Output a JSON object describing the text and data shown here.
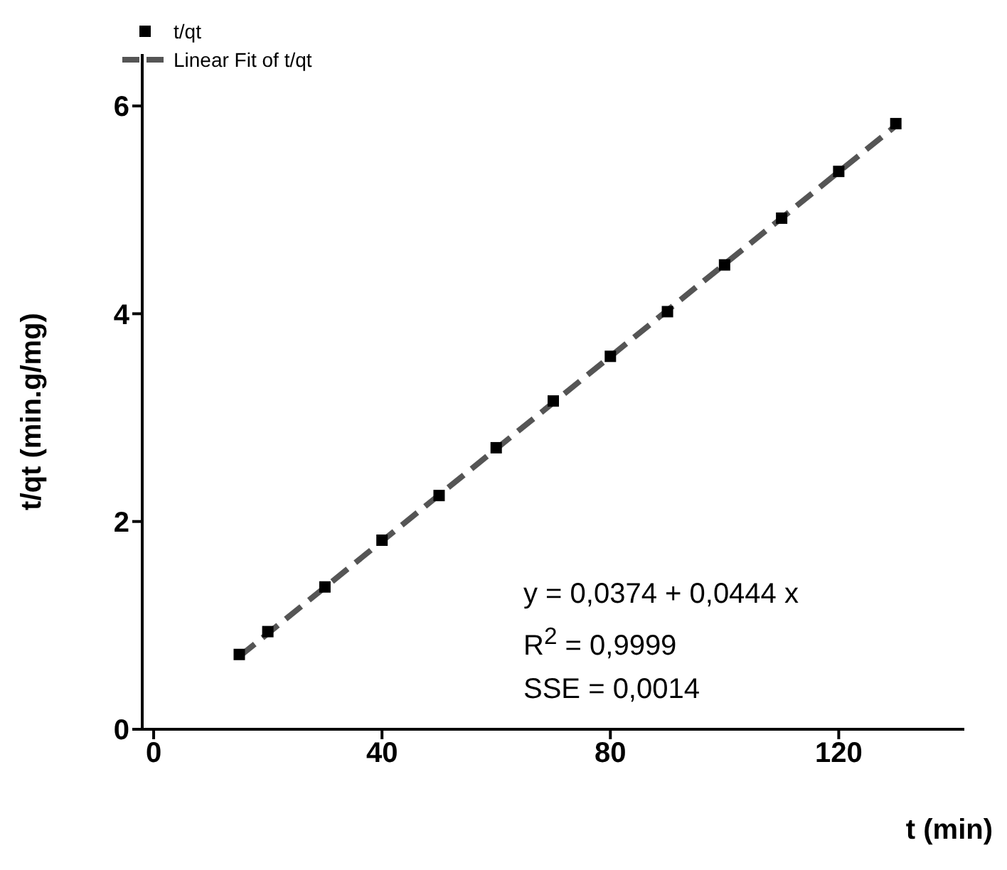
{
  "chart_data": {
    "type": "scatter",
    "xlabel": "t (min)",
    "ylabel": "t/qt (min.g/mg)",
    "xlim": [
      -2,
      142
    ],
    "xticks": [
      0,
      40,
      80,
      120
    ],
    "ylim": [
      0,
      6.5
    ],
    "yticks": [
      0,
      2,
      4,
      6
    ],
    "legend": "top left",
    "grid": false,
    "series": [
      {
        "name": "t/qt",
        "color": "#000000",
        "marker": "square",
        "x": [
          15,
          20,
          30,
          40,
          50,
          60,
          70,
          80,
          90,
          100,
          110,
          120,
          130
        ],
        "values": [
          0.72,
          0.94,
          1.37,
          1.82,
          2.25,
          2.71,
          3.16,
          3.59,
          4.02,
          4.47,
          4.92,
          5.37,
          5.83
        ]
      },
      {
        "name": "Linear Fit of t/qt",
        "type": "line",
        "color": "#555555",
        "line_style": "dashed",
        "marker": "none",
        "x": [
          15,
          130
        ],
        "values": [
          0.7,
          5.81
        ]
      }
    ],
    "annotations": [
      "y = 0,0374 + 0,0444 x",
      "R$^{2}$ = 0,9999",
      "SSE = 0,0014"
    ]
  }
}
